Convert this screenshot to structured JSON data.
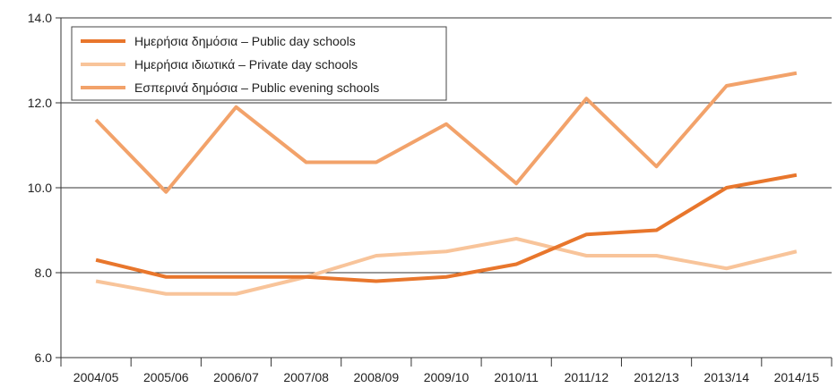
{
  "chart_data": {
    "type": "line",
    "categories": [
      "2004/05",
      "2005/06",
      "2006/07",
      "2007/08",
      "2008/09",
      "2009/10",
      "2010/11",
      "2011/12",
      "2012/13",
      "2013/14",
      "2014/15"
    ],
    "series": [
      {
        "name": "Ημερήσια δημόσια – Public day schools",
        "color": "#E8762C",
        "values": [
          8.3,
          7.9,
          7.9,
          7.9,
          7.8,
          7.9,
          8.2,
          8.9,
          9.0,
          10.0,
          10.3
        ]
      },
      {
        "name": "Ημερήσια ιδιωτικά – Private day schools",
        "color": "#F8C49A",
        "values": [
          7.8,
          7.5,
          7.5,
          7.9,
          8.4,
          8.5,
          8.8,
          8.4,
          8.4,
          8.1,
          8.5
        ]
      },
      {
        "name": "Εσπερινά δημόσια – Public evening schools",
        "color": "#F2A26A",
        "values": [
          11.6,
          9.9,
          11.9,
          10.6,
          10.6,
          11.5,
          10.1,
          12.1,
          10.5,
          12.4,
          12.7
        ]
      }
    ],
    "yticks": [
      "6.0",
      "8.0",
      "10.0",
      "12.0",
      "14.0"
    ],
    "ylim": [
      6,
      14
    ],
    "grid": "horizontal",
    "legend_position": "top-left"
  }
}
